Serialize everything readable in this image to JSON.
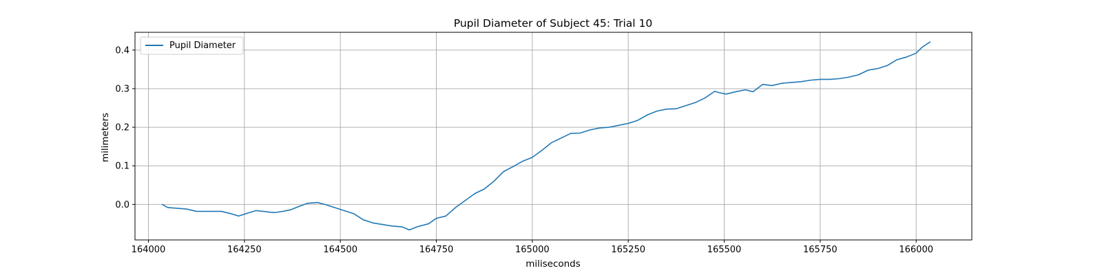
{
  "chart_data": {
    "type": "line",
    "title": "Pupil Diameter of Subject 45: Trial 10",
    "xlabel": "miliseconds",
    "ylabel": "milimeters",
    "xlim": [
      163965,
      166145
    ],
    "ylim": [
      -0.092,
      0.446
    ],
    "xticks": [
      164000,
      164250,
      164500,
      164750,
      165000,
      165250,
      165500,
      165750,
      166000
    ],
    "yticks": [
      0.0,
      0.1,
      0.2,
      0.3,
      0.4
    ],
    "ytick_labels": [
      "0.0",
      "0.1",
      "0.2",
      "0.3",
      "0.4"
    ],
    "grid": true,
    "legend": "upper left",
    "color": "#1f77b4",
    "series": [
      {
        "name": "Pupil Diameter",
        "x": [
          164036,
          164050,
          164075,
          164100,
          164125,
          164145,
          164170,
          164190,
          164215,
          164235,
          164260,
          164280,
          164300,
          164315,
          164330,
          164350,
          164370,
          164395,
          164415,
          164440,
          164460,
          164485,
          164510,
          164535,
          164560,
          164585,
          164610,
          164635,
          164660,
          164680,
          164700,
          164730,
          164750,
          164775,
          164800,
          164825,
          164850,
          164875,
          164900,
          164925,
          164950,
          164975,
          165000,
          165025,
          165050,
          165075,
          165100,
          165125,
          165150,
          165175,
          165200,
          165225,
          165250,
          165275,
          165300,
          165325,
          165350,
          165375,
          165400,
          165425,
          165450,
          165475,
          165490,
          165505,
          165530,
          165555,
          165575,
          165600,
          165625,
          165650,
          165675,
          165700,
          165725,
          165750,
          165775,
          165800,
          165825,
          165850,
          165875,
          165900,
          165925,
          165950,
          165975,
          166000,
          166015,
          166036
        ],
        "values": [
          0.0,
          -0.008,
          -0.01,
          -0.012,
          -0.018,
          -0.018,
          -0.018,
          -0.018,
          -0.024,
          -0.03,
          -0.022,
          -0.016,
          -0.018,
          -0.02,
          -0.021,
          -0.018,
          -0.014,
          -0.004,
          0.003,
          0.005,
          0.0,
          -0.008,
          -0.016,
          -0.024,
          -0.04,
          -0.048,
          -0.052,
          -0.056,
          -0.058,
          -0.066,
          -0.058,
          -0.05,
          -0.036,
          -0.03,
          -0.008,
          0.01,
          0.028,
          0.04,
          0.06,
          0.085,
          0.098,
          0.112,
          0.122,
          0.14,
          0.16,
          0.172,
          0.184,
          0.185,
          0.193,
          0.198,
          0.2,
          0.205,
          0.21,
          0.218,
          0.232,
          0.242,
          0.247,
          0.248,
          0.256,
          0.264,
          0.276,
          0.293,
          0.289,
          0.286,
          0.292,
          0.297,
          0.292,
          0.311,
          0.308,
          0.314,
          0.316,
          0.318,
          0.322,
          0.324,
          0.324,
          0.326,
          0.33,
          0.336,
          0.348,
          0.352,
          0.36,
          0.375,
          0.382,
          0.392,
          0.407,
          0.421
        ]
      }
    ]
  }
}
